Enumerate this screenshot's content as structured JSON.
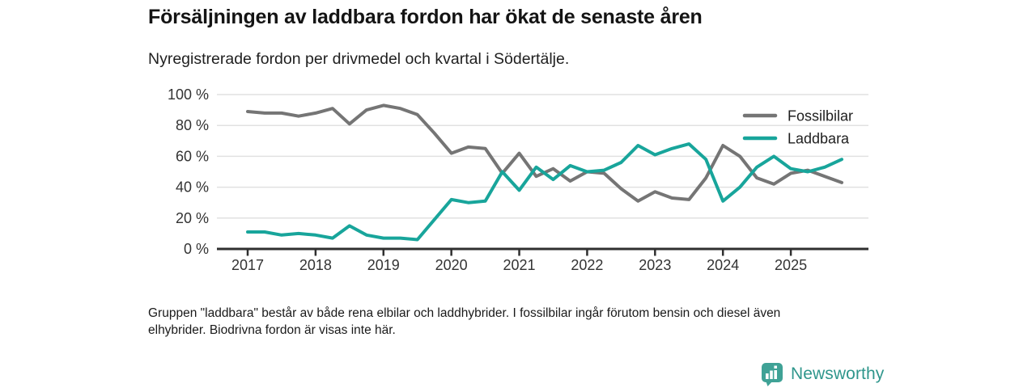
{
  "header": {
    "title": "Försäljningen av laddbara fordon har ökat de senaste åren",
    "subtitle": "Nyregistrerade fordon per drivmedel och kvartal i Södertälje."
  },
  "chart_data": {
    "type": "line",
    "x": [
      "2017Q1",
      "2017Q2",
      "2017Q3",
      "2017Q4",
      "2018Q1",
      "2018Q2",
      "2018Q3",
      "2018Q4",
      "2019Q1",
      "2019Q2",
      "2019Q3",
      "2019Q4",
      "2020Q1",
      "2020Q2",
      "2020Q3",
      "2020Q4",
      "2021Q1",
      "2021Q2",
      "2021Q3",
      "2021Q4",
      "2022Q1",
      "2022Q2",
      "2022Q3",
      "2022Q4",
      "2023Q1",
      "2023Q2",
      "2023Q3",
      "2023Q4",
      "2024Q1",
      "2024Q2",
      "2024Q3",
      "2024Q4",
      "2025Q1",
      "2025Q2",
      "2025Q3",
      "2025Q4"
    ],
    "series": [
      {
        "name": "Fossilbilar",
        "color": "#757575",
        "values": [
          89,
          88,
          88,
          86,
          88,
          91,
          81,
          90,
          93,
          91,
          87,
          75,
          62,
          66,
          65,
          49,
          62,
          47,
          52,
          44,
          50,
          49,
          39,
          31,
          37,
          33,
          32,
          46,
          67,
          60,
          46,
          42,
          49,
          51,
          47,
          43
        ]
      },
      {
        "name": "Laddbara",
        "color": "#18a59b",
        "values": [
          11,
          11,
          9,
          10,
          9,
          7,
          15,
          9,
          7,
          7,
          6,
          19,
          32,
          30,
          31,
          50,
          38,
          53,
          45,
          54,
          50,
          51,
          56,
          67,
          61,
          65,
          68,
          58,
          31,
          40,
          53,
          60,
          52,
          50,
          53,
          58
        ]
      }
    ],
    "x_tick_labels": [
      "2017",
      "2018",
      "2019",
      "2020",
      "2021",
      "2022",
      "2023",
      "2024",
      "2025"
    ],
    "y_ticks": [
      0,
      20,
      40,
      60,
      80,
      100
    ],
    "y_tick_suffix": " %",
    "ylim": [
      0,
      100
    ],
    "grid": true,
    "legend_position": "top-right"
  },
  "footnote": {
    "line1": "Gruppen \"laddbara\" består av både rena elbilar och laddhybrider. I fossilbilar ingår förutom bensin och diesel även",
    "line2": "elhybrider. Biodrivna fordon är visas inte här."
  },
  "logo": {
    "text": "Newsworthy"
  }
}
